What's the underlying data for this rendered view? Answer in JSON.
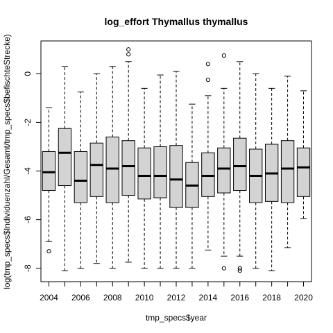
{
  "chart_data": {
    "type": "boxplot",
    "title": "log_effort Thymallus thymallus",
    "xlabel": "tmp_specs$year",
    "ylabel": "log(tmp_specs$Individuenzahl/Gesamt/tmp_specs$befischteStrecke)",
    "ylim": [
      -8.55,
      1.35
    ],
    "y_ticks": [
      -8,
      -6,
      -4,
      -2,
      0
    ],
    "x_tick_labels": [
      "2004",
      "2006",
      "2008",
      "2010",
      "2012",
      "2014",
      "2016",
      "2018",
      "2020"
    ],
    "grid": false,
    "box_fill": "#d3d3d3",
    "boxes": [
      {
        "year": 2004,
        "whisker_low": -6.9,
        "q1": -4.8,
        "median": -4.05,
        "q3": -3.2,
        "whisker_high": -1.4,
        "outliers": [
          -7.3
        ]
      },
      {
        "year": 2005,
        "whisker_low": -8.1,
        "q1": -4.6,
        "median": -3.25,
        "q3": -2.25,
        "whisker_high": 0.3,
        "outliers": []
      },
      {
        "year": 2006,
        "whisker_low": -8.0,
        "q1": -5.3,
        "median": -4.4,
        "q3": -3.2,
        "whisker_high": -0.75,
        "outliers": []
      },
      {
        "year": 2007,
        "whisker_low": -7.8,
        "q1": -5.05,
        "median": -3.75,
        "q3": -2.85,
        "whisker_high": 0.0,
        "outliers": []
      },
      {
        "year": 2008,
        "whisker_low": -8.0,
        "q1": -5.3,
        "median": -3.9,
        "q3": -2.6,
        "whisker_high": 0.3,
        "outliers": []
      },
      {
        "year": 2009,
        "whisker_low": -7.75,
        "q1": -5.0,
        "median": -3.8,
        "q3": -2.75,
        "whisker_high": 0.5,
        "outliers": [
          0.8,
          1.0
        ]
      },
      {
        "year": 2010,
        "whisker_low": -8.0,
        "q1": -5.15,
        "median": -4.2,
        "q3": -3.05,
        "whisker_high": -0.6,
        "outliers": []
      },
      {
        "year": 2011,
        "whisker_low": -8.0,
        "q1": -5.1,
        "median": -4.2,
        "q3": -3.0,
        "whisker_high": -0.05,
        "outliers": []
      },
      {
        "year": 2012,
        "whisker_low": -8.0,
        "q1": -5.5,
        "median": -4.35,
        "q3": -2.95,
        "whisker_high": 0.1,
        "outliers": []
      },
      {
        "year": 2013,
        "whisker_low": -8.0,
        "q1": -5.5,
        "median": -4.6,
        "q3": -3.65,
        "whisker_high": -1.25,
        "outliers": []
      },
      {
        "year": 2014,
        "whisker_low": -7.25,
        "q1": -5.05,
        "median": -4.2,
        "q3": -3.25,
        "whisker_high": -0.9,
        "outliers": [
          0.4,
          -0.25
        ]
      },
      {
        "year": 2015,
        "whisker_low": -7.5,
        "q1": -4.9,
        "median": -3.9,
        "q3": -3.05,
        "whisker_high": -0.6,
        "outliers": [
          0.75,
          -8.0
        ]
      },
      {
        "year": 2016,
        "whisker_low": -7.5,
        "q1": -4.8,
        "median": -3.8,
        "q3": -2.65,
        "whisker_high": 0.5,
        "outliers": [
          -8.0,
          -8.1
        ]
      },
      {
        "year": 2017,
        "whisker_low": -8.0,
        "q1": -5.3,
        "median": -4.2,
        "q3": -3.1,
        "whisker_high": 0.0,
        "outliers": []
      },
      {
        "year": 2018,
        "whisker_low": -8.1,
        "q1": -5.25,
        "median": -4.1,
        "q3": -2.9,
        "whisker_high": -0.6,
        "outliers": []
      },
      {
        "year": 2019,
        "whisker_low": -7.15,
        "q1": -5.3,
        "median": -3.9,
        "q3": -2.75,
        "whisker_high": -0.1,
        "outliers": []
      },
      {
        "year": 2020,
        "whisker_low": -5.95,
        "q1": -5.05,
        "median": -3.85,
        "q3": -3.05,
        "whisker_high": -0.7,
        "outliers": []
      }
    ]
  }
}
